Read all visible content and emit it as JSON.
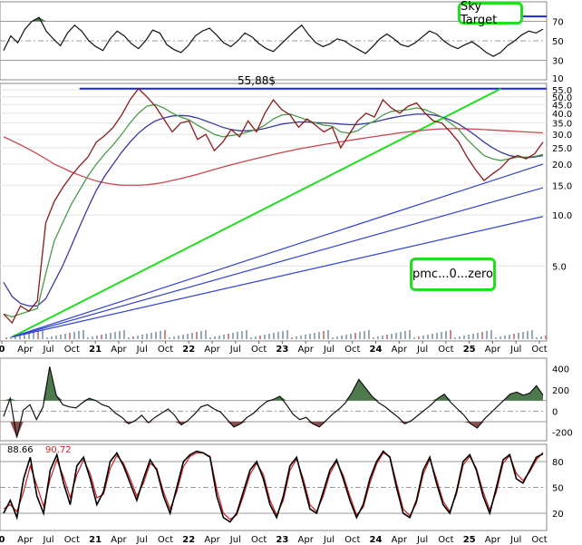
{
  "chart_data": [
    {
      "type": "line",
      "panel": "rsi",
      "ticks": [
        "70",
        "50",
        "30"
      ],
      "levels": [
        70,
        50,
        30
      ],
      "ylim": [
        10,
        90
      ],
      "series": [
        {
          "values": [
            40,
            55,
            48,
            62,
            70,
            74,
            60,
            52,
            45,
            58,
            66,
            60,
            50,
            44,
            40,
            52,
            60,
            55,
            47,
            42,
            50,
            61,
            58,
            46,
            41,
            38,
            45,
            55,
            60,
            63,
            56,
            48,
            44,
            50,
            58,
            54,
            47,
            42,
            39,
            46,
            53,
            60,
            66,
            56,
            48,
            44,
            47,
            52,
            50,
            45,
            41,
            37,
            44,
            52,
            57,
            52,
            46,
            44,
            48,
            54,
            60,
            57,
            50,
            45,
            42,
            46,
            49,
            44,
            38,
            34,
            38,
            45,
            50,
            56,
            60,
            58,
            62
          ]
        }
      ]
    },
    {
      "type": "line",
      "panel": "price",
      "yscale": "log",
      "ylim": [
        1.8,
        60
      ],
      "ticks": [
        "55.0",
        "50.0",
        "45.0",
        "40.0",
        "35.0",
        "30.0",
        "25.0",
        "20.0",
        "15.0",
        "10.0",
        "5.0"
      ],
      "x_ticks": [
        "0",
        "Apr",
        "Jul",
        "Oct",
        "21",
        "Apr",
        "Jul",
        "Oct",
        "22",
        "Apr",
        "Jul",
        "Oct",
        "23",
        "Apr",
        "Jul",
        "Oct",
        "24",
        "Apr",
        "Jul",
        "Oct",
        "25",
        "Apr",
        "Jul",
        "Oct"
      ],
      "annotation": "55,88$",
      "series": [
        {
          "name": "price",
          "color": "#8b1a1a",
          "values": [
            2.6,
            2.3,
            2.9,
            2.7,
            3.1,
            9.0,
            12.0,
            14.5,
            17.0,
            19.5,
            22.0,
            27.0,
            29.5,
            33.0,
            39.0,
            48.0,
            55.9,
            50.0,
            44.0,
            37.0,
            31.0,
            35.0,
            36.0,
            28.0,
            30.0,
            24.0,
            27.0,
            32.0,
            29.0,
            36.0,
            31.0,
            40.0,
            48.0,
            42.0,
            39.0,
            33.0,
            37.0,
            34.0,
            31.0,
            33.0,
            25.0,
            30.0,
            36.0,
            40.0,
            38.0,
            48.0,
            43.0,
            40.0,
            44.0,
            46.0,
            40.0,
            36.0,
            35.0,
            31.0,
            27.0,
            22.0,
            18.5,
            16.0,
            17.5,
            19.0,
            21.5,
            22.5,
            21.5,
            23.0,
            27.0
          ]
        },
        {
          "name": "sma-short",
          "color": "#4c9a4c",
          "values": [
            2.6,
            2.5,
            2.6,
            2.7,
            2.8,
            4.5,
            7.0,
            9.0,
            11.5,
            14.0,
            17.0,
            20.0,
            23.0,
            26.0,
            30.0,
            35.0,
            40.0,
            44.0,
            45.0,
            43.0,
            40.0,
            38.0,
            36.5,
            34.0,
            32.0,
            30.0,
            29.0,
            29.5,
            30.0,
            31.0,
            32.0,
            34.0,
            37.0,
            39.0,
            39.5,
            38.0,
            36.5,
            35.0,
            34.0,
            33.5,
            31.0,
            30.5,
            31.5,
            34.0,
            36.0,
            39.0,
            41.0,
            41.5,
            42.0,
            43.0,
            42.0,
            40.0,
            38.0,
            35.0,
            32.0,
            28.0,
            25.0,
            22.5,
            21.5,
            21.0,
            21.5,
            22.0,
            22.0,
            22.2,
            22.8
          ]
        },
        {
          "name": "sma-mid",
          "color": "#3a3aa0",
          "values": [
            4.0,
            3.3,
            3.0,
            2.9,
            2.9,
            3.2,
            4.0,
            5.0,
            6.5,
            8.5,
            11.0,
            14.0,
            17.0,
            20.0,
            23.5,
            27.0,
            30.5,
            33.5,
            36.0,
            37.5,
            38.5,
            38.8,
            38.5,
            37.5,
            36.0,
            34.5,
            33.0,
            32.0,
            31.5,
            31.5,
            31.8,
            32.5,
            33.5,
            34.5,
            35.0,
            35.5,
            35.5,
            35.2,
            35.0,
            34.8,
            34.5,
            34.2,
            34.3,
            34.8,
            35.5,
            36.5,
            37.5,
            38.3,
            39.0,
            39.5,
            39.5,
            39.0,
            38.0,
            36.5,
            34.5,
            32.0,
            29.5,
            27.0,
            25.0,
            23.5,
            22.5,
            22.0,
            21.8,
            22.0,
            22.5
          ]
        },
        {
          "name": "sma-long",
          "color": "#cc4450",
          "values": [
            29.0,
            27.5,
            26.0,
            24.5,
            23.0,
            21.5,
            20.0,
            19.0,
            18.0,
            17.2,
            16.5,
            15.9,
            15.5,
            15.2,
            15.0,
            15.0,
            15.0,
            15.1,
            15.3,
            15.6,
            16.0,
            16.4,
            16.9,
            17.4,
            18.0,
            18.6,
            19.2,
            19.8,
            20.4,
            21.0,
            21.6,
            22.2,
            22.8,
            23.4,
            24.0,
            24.6,
            25.1,
            25.6,
            26.1,
            26.6,
            27.1,
            27.6,
            28.1,
            28.6,
            29.1,
            29.6,
            30.1,
            30.6,
            31.0,
            31.4,
            31.8,
            32.1,
            32.3,
            32.4,
            32.4,
            32.3,
            32.2,
            32.0,
            31.8,
            31.6,
            31.4,
            31.2,
            31.0,
            30.8,
            30.6
          ]
        }
      ],
      "reference_lines": [
        {
          "type": "horizontal",
          "value": 55.88,
          "color": "#1a2ad8",
          "from_index": 9
        },
        {
          "type": "fan",
          "color": "#22dd22",
          "from_index": 1,
          "from_value": 1.9,
          "to_index": 59,
          "to_value": 55.88
        },
        {
          "type": "fan",
          "color": "#3344cc",
          "from_index": 1,
          "from_value": 1.9,
          "to_index": 64,
          "to_value": 20
        },
        {
          "type": "fan",
          "color": "#3344cc",
          "from_index": 1,
          "from_value": 1.9,
          "to_index": 64,
          "to_value": 14.5
        },
        {
          "type": "fan",
          "color": "#3344cc",
          "from_index": 1,
          "from_value": 1.9,
          "to_index": 64,
          "to_value": 9.8
        }
      ]
    },
    {
      "type": "line",
      "panel": "oscillator",
      "ticks": [
        "400",
        "200",
        "0",
        "-200"
      ],
      "ylim": [
        -280,
        500
      ],
      "levels": [
        100,
        0,
        -100
      ],
      "series": [
        {
          "values": [
            -50,
            120,
            -250,
            10,
            60,
            -80,
            40,
            420,
            150,
            60,
            40,
            30,
            80,
            120,
            100,
            60,
            40,
            -20,
            -60,
            -120,
            -90,
            -40,
            -110,
            -60,
            -20,
            20,
            -40,
            -130,
            -90,
            -30,
            40,
            60,
            20,
            -10,
            -80,
            -150,
            -120,
            -60,
            -20,
            40,
            90,
            110,
            140,
            60,
            -30,
            -80,
            -60,
            -120,
            -150,
            -90,
            -30,
            20,
            80,
            180,
            300,
            220,
            140,
            80,
            40,
            -10,
            -60,
            -120,
            -90,
            -40,
            10,
            60,
            120,
            160,
            80,
            20,
            -40,
            -120,
            -160,
            -80,
            -20,
            40,
            100,
            160,
            180,
            150,
            170,
            240,
            150
          ]
        }
      ]
    },
    {
      "type": "line",
      "panel": "stochastic",
      "ticks": [
        "80",
        "50",
        "20"
      ],
      "levels": [
        80,
        50,
        20
      ],
      "ylim": [
        0,
        100
      ],
      "label_values": [
        "88.66",
        "90.72"
      ],
      "series": [
        {
          "name": "88.66",
          "color": "#000000",
          "values": [
            20,
            35,
            15,
            60,
            85,
            40,
            20,
            70,
            88,
            55,
            30,
            75,
            85,
            60,
            30,
            45,
            80,
            90,
            75,
            55,
            35,
            60,
            82,
            70,
            40,
            20,
            50,
            80,
            88,
            92,
            90,
            85,
            40,
            15,
            10,
            20,
            45,
            70,
            80,
            60,
            30,
            15,
            40,
            75,
            85,
            55,
            25,
            20,
            45,
            70,
            82,
            60,
            35,
            15,
            30,
            60,
            80,
            92,
            85,
            50,
            20,
            15,
            35,
            70,
            85,
            55,
            30,
            20,
            45,
            80,
            88,
            70,
            40,
            20,
            50,
            82,
            88,
            60,
            55,
            70,
            85,
            89
          ]
        },
        {
          "name": "90.72",
          "color": "#cc2020",
          "values": [
            25,
            30,
            22,
            45,
            75,
            52,
            28,
            60,
            82,
            62,
            38,
            65,
            82,
            66,
            38,
            42,
            72,
            87,
            78,
            60,
            40,
            55,
            78,
            72,
            45,
            25,
            45,
            74,
            86,
            90,
            90,
            86,
            48,
            20,
            13,
            18,
            40,
            65,
            78,
            65,
            35,
            18,
            35,
            70,
            83,
            60,
            30,
            22,
            40,
            66,
            80,
            64,
            40,
            18,
            27,
            55,
            77,
            90,
            86,
            55,
            25,
            17,
            32,
            65,
            83,
            60,
            34,
            22,
            42,
            76,
            86,
            72,
            45,
            24,
            45,
            78,
            87,
            66,
            58,
            68,
            82,
            90.7
          ]
        }
      ]
    }
  ],
  "annotations": {
    "sky_target": "Sky Target",
    "pmc": "pmc...0...zero"
  }
}
